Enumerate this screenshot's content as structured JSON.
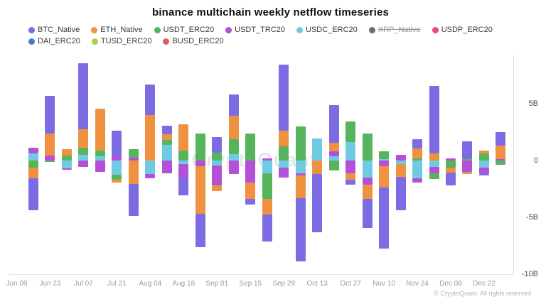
{
  "title": "binance multichain weekly netflow timeseries",
  "watermark": "CryptoQuant",
  "footer": {
    "copyright": "© CryptoQuant. All rights reserved"
  },
  "legend": {
    "items": [
      {
        "label": "BTC_Native",
        "color": "#7c6ce4",
        "disabled": false
      },
      {
        "label": "ETH_Native",
        "color": "#f0913f",
        "disabled": false
      },
      {
        "label": "USDT_ERC20",
        "color": "#56b55c",
        "disabled": false
      },
      {
        "label": "USDT_TRC20",
        "color": "#b44fd8",
        "disabled": false
      },
      {
        "label": "USDC_ERC20",
        "color": "#70cbe2",
        "disabled": false
      },
      {
        "label": "XRP_Native",
        "color": "#6e6e6e",
        "disabled": true
      },
      {
        "label": "USDP_ERC20",
        "color": "#e54d80",
        "disabled": false
      },
      {
        "label": "DAI_ERC20",
        "color": "#4678dd",
        "disabled": false
      },
      {
        "label": "TUSD_ERC20",
        "color": "#b3cb4a",
        "disabled": false
      },
      {
        "label": "BUSD_ERC20",
        "color": "#d95f60",
        "disabled": false
      }
    ]
  },
  "y_axis": {
    "ticks": [
      {
        "value": 5,
        "label": "5B"
      },
      {
        "value": 0,
        "label": "0"
      },
      {
        "value": -5,
        "label": "-5B"
      },
      {
        "value": -10,
        "label": "-10B"
      }
    ]
  },
  "chart_data": {
    "type": "bar",
    "stacked": true,
    "value_unit": "billions USD (B)",
    "title": "binance multichain weekly netflow timeseries",
    "xlabel": "week",
    "ylabel": "netflow",
    "ylim": [
      -10,
      9.15
    ],
    "grid": "off",
    "legend_position": "top",
    "disabled_series": [
      "XRP_Native"
    ],
    "categories": [
      "Jun 09",
      "Jun 16",
      "Jun 23",
      "Jun 30",
      "Jul 07",
      "Jul 14",
      "Jul 21",
      "Jul 28",
      "Aug 04",
      "Aug 11",
      "Aug 18",
      "Aug 25",
      "Sep 01",
      "Sep 08",
      "Sep 15",
      "Sep 22",
      "Sep 29",
      "Oct 06",
      "Oct 13",
      "Oct 20",
      "Oct 27",
      "Nov 03",
      "Nov 10",
      "Nov 17",
      "Nov 24",
      "Dec 01",
      "Dec 08",
      "Dec 15",
      "Dec 22",
      "Dec 29"
    ],
    "x_tick_labels": [
      "Jun 09",
      "Jun 23",
      "Jul 07",
      "Jul 21",
      "Aug 04",
      "Aug 18",
      "Sep 01",
      "Sep 15",
      "Sep 29",
      "Oct 13",
      "Oct 27",
      "Nov 10",
      "Nov 24",
      "Dec 08",
      "Dec 22"
    ],
    "series": [
      {
        "name": "BTC_Native",
        "values": [
          0,
          -2.85,
          3.35,
          0,
          5.8,
          0,
          2.25,
          -2.85,
          2.7,
          0.75,
          -1.55,
          -2.9,
          1.35,
          1.85,
          -0.45,
          -2.4,
          5.85,
          -5.55,
          -5.1,
          3.3,
          -0.4,
          -2.55,
          -5.35,
          -2.95,
          0.85,
          5.9,
          -1.15,
          1.6,
          -0.2,
          1.2
        ]
      },
      {
        "name": "ETH_Native",
        "values": [
          0,
          -0.95,
          1.9,
          0.55,
          1.65,
          3.7,
          -0.25,
          -2.05,
          4.0,
          0.5,
          2.35,
          -4.2,
          -0.5,
          2.1,
          -1.45,
          -1.35,
          1.35,
          -2.0,
          -1.2,
          0.75,
          -0.6,
          -1.25,
          -1.9,
          -1.15,
          0.85,
          0.65,
          -0.4,
          -0.2,
          0.25,
          1.2
        ]
      },
      {
        "name": "USDT_ERC20",
        "values": [
          0,
          -0.6,
          -0.1,
          0.45,
          0.6,
          0.5,
          -0.45,
          0.75,
          0,
          0.4,
          0.85,
          2.35,
          0.7,
          1.3,
          2.4,
          -2.3,
          1.25,
          3.0,
          0,
          -0.9,
          1.8,
          2.35,
          0.65,
          0,
          0.2,
          -0.5,
          -0.65,
          0.1,
          0.65,
          -0.4
        ]
      },
      {
        "name": "USDT_TRC20",
        "values": [
          0,
          0.55,
          0.45,
          -0.1,
          -0.55,
          -1.0,
          0.35,
          0.25,
          -0.35,
          -1.15,
          -1.2,
          -0.5,
          -1.75,
          -1.2,
          -1.95,
          0.2,
          -0.85,
          -0.2,
          0,
          0.4,
          -1.1,
          -0.65,
          -0.5,
          0.5,
          -0.4,
          -0.6,
          0.2,
          -1.0,
          -0.5,
          0.1
        ]
      },
      {
        "name": "USDC_ERC20",
        "values": [
          0,
          0.6,
          0,
          -0.7,
          0.5,
          0.35,
          -1.25,
          0,
          -1.2,
          1.4,
          -0.3,
          0,
          -0.45,
          0.55,
          0,
          -1.1,
          -0.65,
          -1.1,
          1.95,
          0.4,
          1.65,
          -1.5,
          0.15,
          -0.3,
          -1.55,
          -0.55,
          0,
          0,
          -0.6,
          0
        ]
      },
      {
        "name": "USDP_ERC20",
        "values": [
          0,
          0,
          0,
          0,
          0,
          0,
          0,
          0,
          0,
          0,
          0,
          0,
          0,
          0,
          0,
          0,
          0,
          0,
          0,
          0,
          0,
          0,
          0,
          0,
          0,
          0,
          0,
          0,
          0,
          0
        ]
      },
      {
        "name": "DAI_ERC20",
        "values": [
          0,
          0,
          0,
          0,
          0,
          0,
          0,
          0,
          0,
          0,
          0,
          0,
          0,
          0,
          0,
          0,
          0,
          0,
          0,
          0,
          0,
          0,
          0,
          0,
          0,
          0,
          0,
          0,
          0,
          0
        ]
      },
      {
        "name": "TUSD_ERC20",
        "values": [
          0,
          0,
          0,
          0,
          0,
          0,
          0,
          0,
          0,
          0,
          0,
          0,
          0,
          0,
          0,
          0,
          0,
          0,
          0,
          0,
          0,
          0,
          0,
          0,
          0,
          0,
          0,
          0,
          0,
          0
        ]
      },
      {
        "name": "BUSD_ERC20",
        "values": [
          0,
          0,
          0,
          0,
          0,
          0,
          0,
          0,
          0,
          0,
          0,
          0,
          0,
          0,
          0,
          0,
          0,
          0,
          0,
          0,
          0,
          0,
          0,
          0,
          0,
          0,
          0,
          0,
          0,
          0
        ]
      }
    ]
  }
}
